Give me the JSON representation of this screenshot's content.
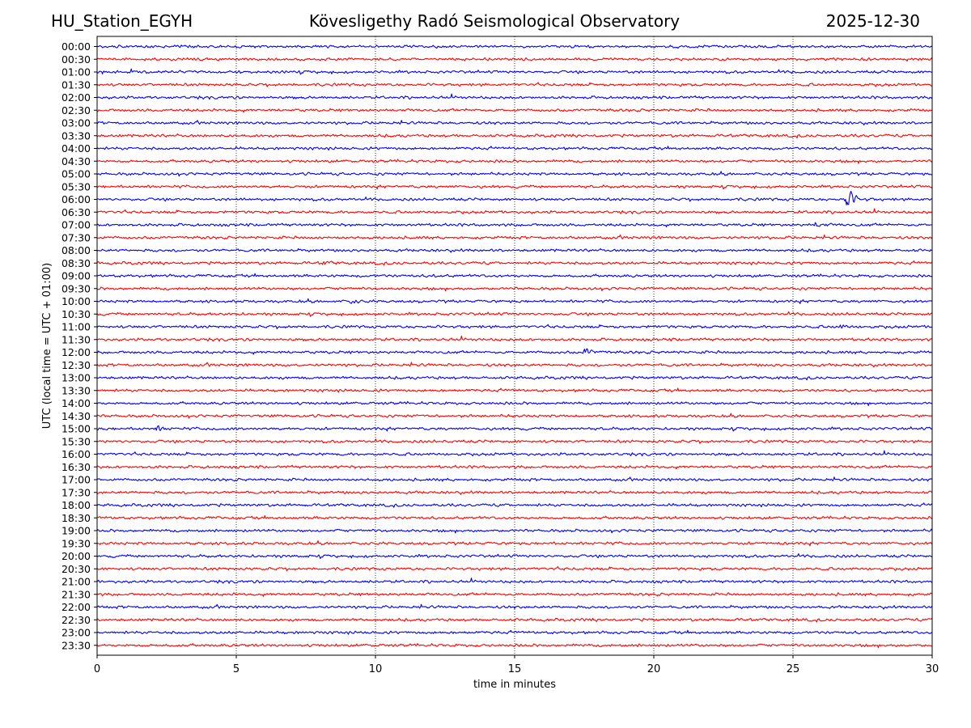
{
  "header": {
    "station": "HU_Station_EGYH",
    "observatory": "Kövesligethy Radó Seismological Observatory",
    "date": "2025-12-30"
  },
  "colors": {
    "trace_even": "#0000ff",
    "trace_odd": "#ff0000",
    "grid": "#000000"
  },
  "chart_data": {
    "type": "line",
    "title": "Kövesligethy Radó Seismological Observatory",
    "xlabel": "time in minutes",
    "ylabel": "UTC (local time = UTC + 01:00)",
    "xlim": [
      0,
      30
    ],
    "xticks": [
      "0",
      "5",
      "10",
      "15",
      "20",
      "25",
      "30"
    ],
    "grid": "vertical dotted lines at x = 5, 10, 15, 20, 25",
    "rows": [
      "00:00",
      "00:30",
      "01:00",
      "01:30",
      "02:00",
      "02:30",
      "03:00",
      "03:30",
      "04:00",
      "04:30",
      "05:00",
      "05:30",
      "06:00",
      "06:30",
      "07:00",
      "07:30",
      "08:00",
      "08:30",
      "09:00",
      "09:30",
      "10:00",
      "10:30",
      "11:00",
      "11:30",
      "12:00",
      "12:30",
      "13:00",
      "13:30",
      "14:00",
      "14:30",
      "15:00",
      "15:30",
      "16:00",
      "16:30",
      "17:00",
      "17:30",
      "18:00",
      "18:30",
      "19:00",
      "19:30",
      "20:00",
      "20:30",
      "21:00",
      "21:30",
      "22:00",
      "22:30",
      "23:00",
      "23:30"
    ],
    "series_note": "one seismogram trace per 30-minute row, alternating blue and red, relative amplitude",
    "base_amplitude": 1.0,
    "events": [
      {
        "row": "06:00",
        "minute": 26.9,
        "amplitude": 12
      },
      {
        "row": "12:00",
        "minute": 17.5,
        "amplitude": 5
      },
      {
        "row": "15:00",
        "minute": 2.1,
        "amplitude": 3
      },
      {
        "row": "07:00",
        "minute": 25.8,
        "amplitude": 3
      },
      {
        "row": "11:00",
        "minute": 26.6,
        "amplitude": 3
      },
      {
        "row": "10:00",
        "minute": 9.1,
        "amplitude": 2.5
      },
      {
        "row": "08:30",
        "minute": 8.1,
        "amplitude": 2.5
      },
      {
        "row": "09:00",
        "minute": 12.0,
        "amplitude": 2.5
      }
    ]
  }
}
